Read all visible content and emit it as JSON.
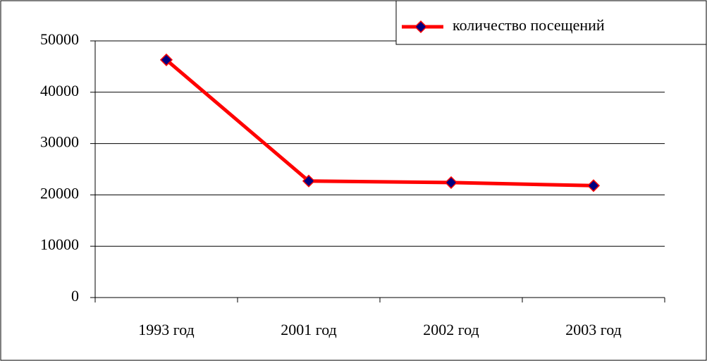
{
  "chart_data": {
    "type": "line",
    "categories": [
      "1993 год",
      "2001 год",
      "2002 год",
      "2003 год"
    ],
    "series": [
      {
        "name": "количество посещений",
        "color": "#ff0000",
        "marker_color": "#000080",
        "values": [
          46300,
          22700,
          22400,
          21800
        ]
      }
    ],
    "ylim": [
      0,
      50000
    ],
    "yticks": [
      0,
      10000,
      20000,
      30000,
      40000,
      50000
    ],
    "grid": true,
    "legend": "upper right"
  }
}
